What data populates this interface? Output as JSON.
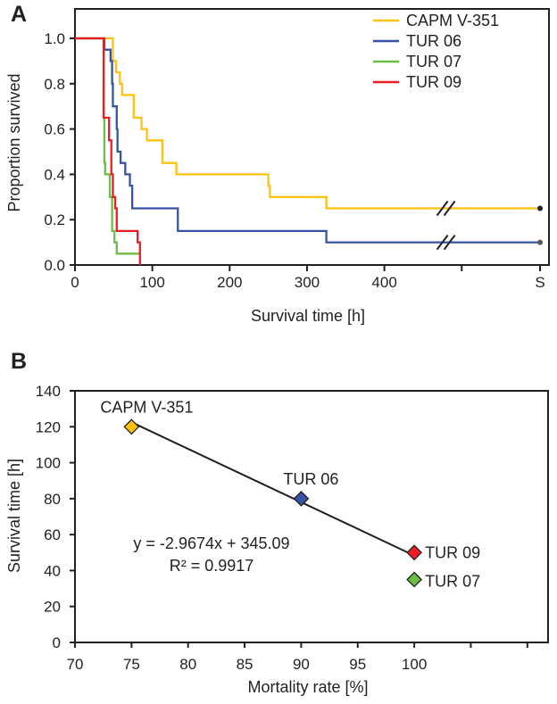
{
  "chart_data": [
    {
      "panel": "A",
      "type": "line",
      "subtype": "kaplan-meier-step",
      "xlabel": "Survival time [h]",
      "ylabel": "Proportion survived",
      "xticks": [
        "0",
        "100",
        "200",
        "300",
        "400",
        "",
        "S"
      ],
      "yticks": [
        "0.0",
        "0.2",
        "0.4",
        "0.6",
        "0.8",
        "1.0"
      ],
      "ylim": [
        0,
        1
      ],
      "xlim": [
        0,
        600
      ],
      "axis_break": "between 400 and S",
      "legend": "top-right",
      "series": [
        {
          "name": "CAPM V-351",
          "color": "#ffc20e",
          "end_marker": true,
          "steps": [
            [
              0,
              1.0
            ],
            [
              49,
              0.9
            ],
            [
              53,
              0.85
            ],
            [
              58,
              0.8
            ],
            [
              61,
              0.75
            ],
            [
              76,
              0.65
            ],
            [
              86,
              0.6
            ],
            [
              93,
              0.55
            ],
            [
              113,
              0.45
            ],
            [
              131,
              0.4
            ],
            [
              250,
              0.35
            ],
            [
              252,
              0.3
            ],
            [
              325,
              0.25
            ]
          ]
        },
        {
          "name": "TUR 06",
          "color": "#3953a4",
          "end_marker": true,
          "steps": [
            [
              0,
              1.0
            ],
            [
              38,
              0.95
            ],
            [
              46,
              0.9
            ],
            [
              48,
              0.8
            ],
            [
              49,
              0.7
            ],
            [
              54,
              0.6
            ],
            [
              55,
              0.5
            ],
            [
              59,
              0.45
            ],
            [
              65,
              0.4
            ],
            [
              71,
              0.35
            ],
            [
              74,
              0.25
            ],
            [
              133,
              0.15
            ],
            [
              325,
              0.1
            ]
          ]
        },
        {
          "name": "TUR 07",
          "color": "#6abd45",
          "end_marker": false,
          "steps": [
            [
              0,
              1.0
            ],
            [
              37,
              0.65
            ],
            [
              38,
              0.45
            ],
            [
              39,
              0.4
            ],
            [
              45,
              0.3
            ],
            [
              48,
              0.15
            ],
            [
              51,
              0.1
            ],
            [
              54,
              0.05
            ],
            [
              84,
              0.05
            ]
          ]
        },
        {
          "name": "TUR 09",
          "color": "#ed1c24",
          "end_marker": false,
          "steps": [
            [
              0,
              1.0
            ],
            [
              37,
              0.65
            ],
            [
              44,
              0.55
            ],
            [
              47,
              0.4
            ],
            [
              49,
              0.3
            ],
            [
              52,
              0.25
            ],
            [
              54,
              0.15
            ],
            [
              81,
              0.1
            ],
            [
              84,
              0.0
            ]
          ]
        }
      ]
    },
    {
      "panel": "B",
      "type": "scatter",
      "xlabel": "Mortality rate [%]",
      "ylabel": "Survival time [h]",
      "xlim": [
        70,
        115
      ],
      "ylim": [
        0,
        140
      ],
      "xticks": [
        "70",
        "75",
        "80",
        "85",
        "90",
        "95",
        "100",
        "",
        ""
      ],
      "yticks": [
        "0",
        "20",
        "40",
        "60",
        "80",
        "100",
        "120",
        "140"
      ],
      "points": [
        {
          "name": "CAPM V-351",
          "x": 75,
          "y": 120,
          "color": "#ffc20e"
        },
        {
          "name": "TUR 06",
          "x": 90,
          "y": 80,
          "color": "#3953a4"
        },
        {
          "name": "TUR 09",
          "x": 100,
          "y": 50,
          "color": "#ed1c24"
        },
        {
          "name": "TUR 07",
          "x": 100,
          "y": 35,
          "color": "#6abd45"
        }
      ],
      "trendline": {
        "slope": -2.9674,
        "intercept": 345.09,
        "x_range": [
          75,
          100
        ]
      },
      "equation": "y = -2.9674x + 345.09",
      "r_squared": "R² = 0.9917"
    }
  ]
}
